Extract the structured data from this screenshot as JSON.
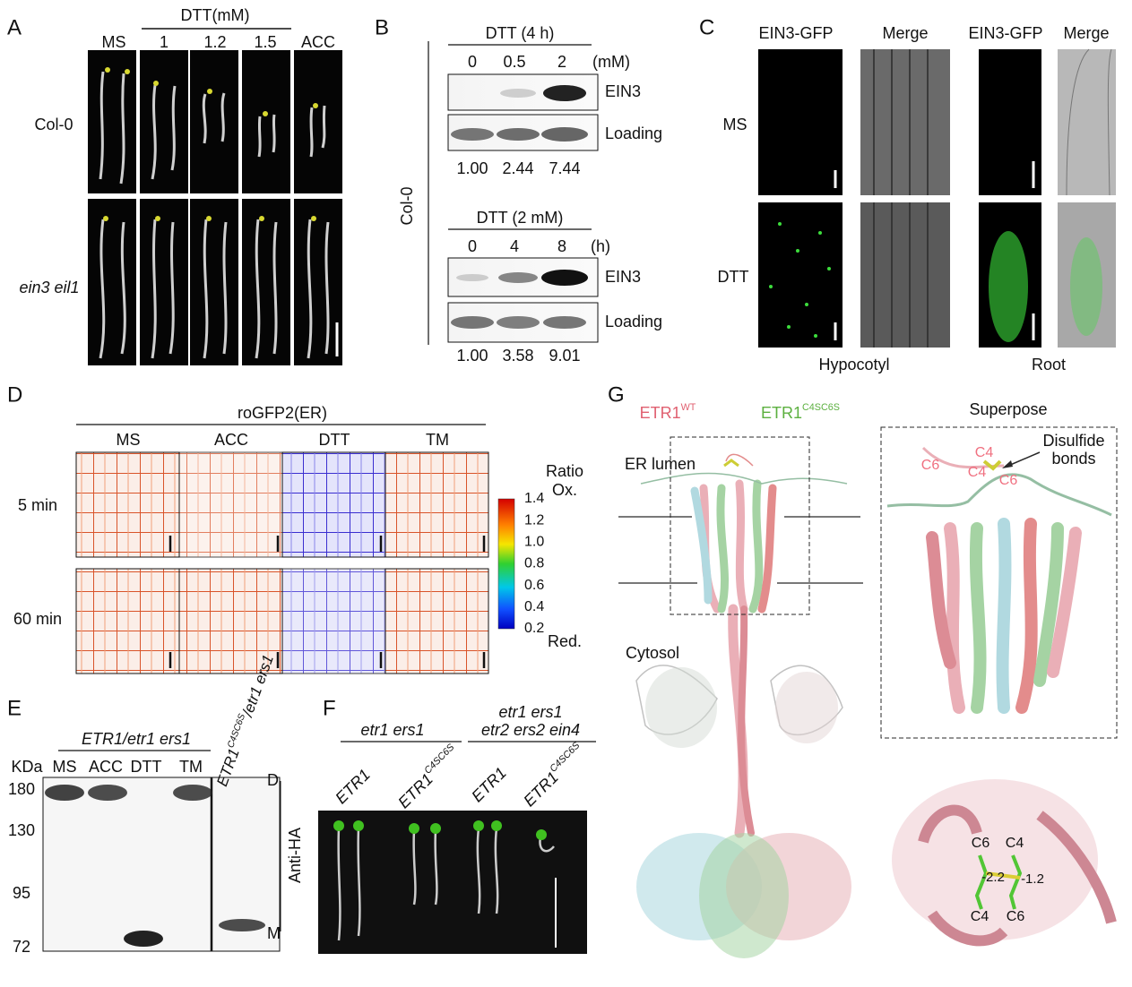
{
  "panel_a": {
    "label": "A",
    "treatment_header": "DTT(mM)",
    "columns": [
      "MS",
      "1",
      "1.2",
      "1.5",
      "ACC"
    ],
    "rows": [
      "Col-0",
      "ein3 eil1"
    ]
  },
  "panel_b": {
    "label": "B",
    "genotype": "Col-0",
    "blot_1": {
      "header": "DTT (4 h)",
      "lanes": [
        "0",
        "0.5",
        "2"
      ],
      "unit": "(mM)",
      "bands": [
        "EIN3",
        "Loading"
      ],
      "quantification": [
        "1.00",
        "2.44",
        "7.44"
      ]
    },
    "blot_2": {
      "header": "DTT (2 mM)",
      "lanes": [
        "0",
        "4",
        "8"
      ],
      "unit": "(h)",
      "bands": [
        "EIN3",
        "Loading"
      ],
      "quantification": [
        "1.00",
        "3.58",
        "9.01"
      ]
    }
  },
  "panel_c": {
    "label": "C",
    "columns": [
      "EIN3-GFP",
      "Merge",
      "EIN3-GFP",
      "Merge"
    ],
    "rows": [
      "MS",
      "DTT"
    ],
    "tissues": [
      "Hypocotyl",
      "Root"
    ]
  },
  "panel_d": {
    "label": "D",
    "header": "roGFP2(ER)",
    "columns": [
      "MS",
      "ACC",
      "DTT",
      "TM"
    ],
    "rows": [
      "5 min",
      "60 min"
    ],
    "colorbar": {
      "title": "Ratio",
      "top_label": "Ox.",
      "bottom_label": "Red.",
      "ticks": [
        "1.4",
        "1.2",
        "1.0",
        "0.8",
        "0.6",
        "0.4",
        "0.2"
      ]
    }
  },
  "panel_e": {
    "label": "E",
    "header": "ETR1/etr1 ers1",
    "mutant_header": {
      "gene": "ETR1",
      "superscript": "C4SC6S",
      "background": "/etr1 ers1"
    },
    "lanes": [
      "MS",
      "ACC",
      "DTT",
      "TM"
    ],
    "marker_unit": "KDa",
    "markers": [
      "180",
      "130",
      "95",
      "72"
    ],
    "band_labels": [
      "D",
      "M"
    ],
    "antibody": "Anti-HA"
  },
  "panel_f": {
    "label": "F",
    "groups": [
      [
        "etr1 ers1"
      ],
      [
        "etr1 ers1",
        "etr2 ers2 ein4"
      ]
    ],
    "lines": [
      {
        "gene": "ETR1"
      },
      {
        "gene": "ETR1",
        "superscript": "C4SC6S"
      },
      {
        "gene": "ETR1"
      },
      {
        "gene": "ETR1",
        "superscript": "C4SC6S"
      }
    ]
  },
  "panel_g": {
    "label": "G",
    "legend": [
      {
        "gene": "ETR1",
        "superscript": "WT"
      },
      {
        "gene": "ETR1",
        "superscript": "C4SC6S"
      }
    ],
    "inset_title": "Superpose",
    "compartments": [
      "ER lumen",
      "Cytosol"
    ],
    "annotation": [
      "Disulfide",
      "bonds"
    ],
    "inset_residues": [
      "C6",
      "C4",
      "C4",
      "C6"
    ],
    "bottom_residues": [
      "C6",
      "C4",
      "C4",
      "C6"
    ],
    "distances": [
      "-2.2",
      "-1.2"
    ]
  }
}
